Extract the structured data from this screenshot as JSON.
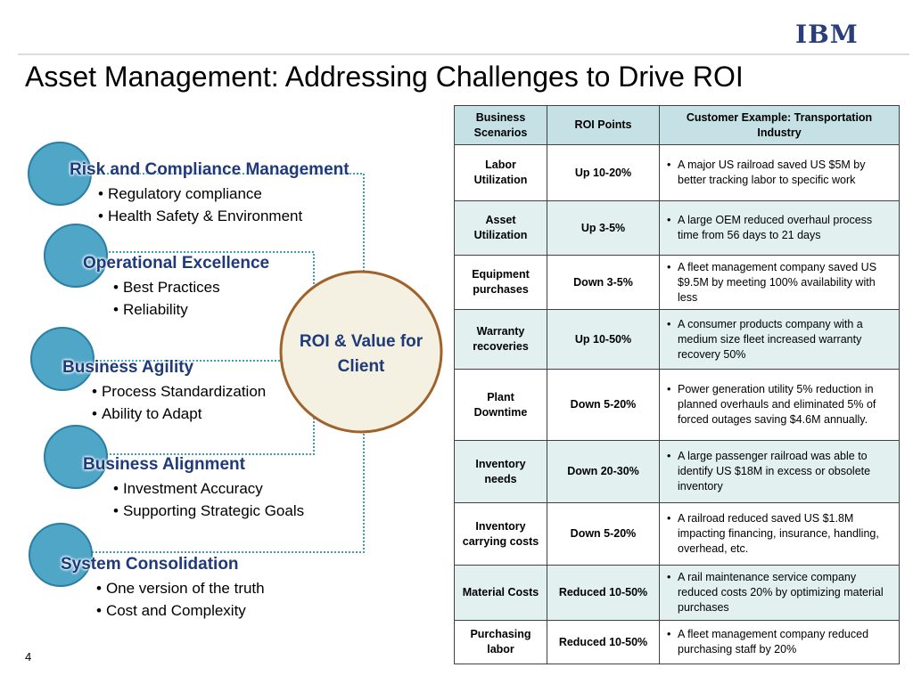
{
  "header": {
    "logo": "IBM",
    "title": "Asset Management: Addressing Challenges to Drive ROI"
  },
  "drivers": [
    {
      "title": "Risk and Compliance Management",
      "points": [
        "Regulatory compliance",
        "Health Safety & Environment"
      ]
    },
    {
      "title": "Operational Excellence",
      "points": [
        "Best Practices",
        "Reliability"
      ]
    },
    {
      "title": "Business Agility",
      "points": [
        "Process Standardization",
        "Ability to Adapt"
      ]
    },
    {
      "title": "Business Alignment",
      "points": [
        "Investment Accuracy",
        "Supporting Strategic Goals"
      ]
    },
    {
      "title": "System Consolidation",
      "points": [
        "One version of the truth",
        "Cost and Complexity"
      ]
    }
  ],
  "center": "ROI & Value for Client",
  "table": {
    "columns": [
      "Business Scenarios",
      "ROI Points",
      "Customer Example: Transportation Industry"
    ],
    "rows": [
      [
        "Labor Utilization",
        "Up 10-20%",
        "A major US railroad saved US $5M by better tracking labor to specific work"
      ],
      [
        "Asset Utilization",
        "Up 3-5%",
        "A large OEM reduced overhaul process time from 56 days to 21 days"
      ],
      [
        "Equipment purchases",
        "Down 3-5%",
        "A fleet management company saved US $9.5M by meeting 100% availability with less"
      ],
      [
        "Warranty recoveries",
        "Up 10-50%",
        "A consumer products company with a medium size fleet increased warranty recovery 50%"
      ],
      [
        "Plant Downtime",
        "Down 5-20%",
        "Power generation utility 5% reduction in planned overhauls and eliminated 5% of forced outages saving $4.6M annually."
      ],
      [
        "Inventory needs",
        "Down 20-30%",
        "A large passenger railroad was able to identify US $18M in excess or obsolete inventory"
      ],
      [
        "Inventory carrying costs",
        "Down 5-20%",
        "A railroad reduced saved US $1.8M impacting financing, insurance, handling, overhead, etc."
      ],
      [
        "Material Costs",
        "Reduced 10-50%",
        "A rail maintenance service company reduced costs 20% by optimizing material purchases"
      ],
      [
        "Purchasing labor",
        "Reduced 10-50%",
        "A fleet management company reduced purchasing staff by 20%"
      ]
    ]
  },
  "footer": {
    "page_number": "4"
  }
}
